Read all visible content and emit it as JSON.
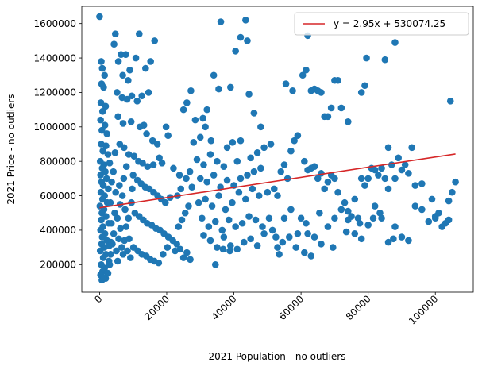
{
  "chart_data": {
    "type": "scatter",
    "xlabel": "2021 Population - no outliers",
    "ylabel": "2021 Price - no outliers",
    "xlim": [
      -5300,
      111300
    ],
    "ylim": [
      40000,
      1700000
    ],
    "xticks": [
      0,
      20000,
      40000,
      60000,
      80000,
      100000
    ],
    "yticks": [
      200000,
      400000,
      600000,
      800000,
      1000000,
      1200000,
      1400000,
      1600000
    ],
    "grid": false,
    "legend_position": "top-right",
    "colors": {
      "points": "#1f77b4",
      "fit_line": "#d62728"
    },
    "fit_line": {
      "label": "y = 2.95x + 530074.25",
      "slope": 2.95,
      "intercept": 530074.25,
      "x_range": [
        0,
        106000
      ]
    },
    "points": [
      [
        0,
        1640000
      ],
      [
        500,
        1380000
      ],
      [
        800,
        1340000
      ],
      [
        1500,
        1300000
      ],
      [
        600,
        1250000
      ],
      [
        1200,
        1230000
      ],
      [
        400,
        1140000
      ],
      [
        1800,
        1120000
      ],
      [
        900,
        1090000
      ],
      [
        300,
        1040000
      ],
      [
        1600,
        1010000
      ],
      [
        700,
        980000
      ],
      [
        2200,
        960000
      ],
      [
        500,
        900000
      ],
      [
        1900,
        890000
      ],
      [
        1000,
        860000
      ],
      [
        2500,
        840000
      ],
      [
        200,
        800000
      ],
      [
        1300,
        780000
      ],
      [
        800,
        760000
      ],
      [
        1700,
        740000
      ],
      [
        300,
        720000
      ],
      [
        2100,
        700000
      ],
      [
        600,
        680000
      ],
      [
        1100,
        660000
      ],
      [
        2600,
        640000
      ],
      [
        400,
        620000
      ],
      [
        1500,
        600000
      ],
      [
        900,
        580000
      ],
      [
        2300,
        560000
      ],
      [
        100,
        540000
      ],
      [
        1300,
        520000
      ],
      [
        700,
        500000
      ],
      [
        1900,
        480000
      ],
      [
        500,
        460000
      ],
      [
        2700,
        440000
      ],
      [
        1000,
        420000
      ],
      [
        300,
        400000
      ],
      [
        1600,
        380000
      ],
      [
        800,
        360000
      ],
      [
        2200,
        340000
      ],
      [
        600,
        320000
      ],
      [
        1400,
        300000
      ],
      [
        200,
        280000
      ],
      [
        1900,
        260000
      ],
      [
        1100,
        240000
      ],
      [
        2800,
        220000
      ],
      [
        500,
        200000
      ],
      [
        1500,
        180000
      ],
      [
        900,
        160000
      ],
      [
        300,
        140000
      ],
      [
        1800,
        120000
      ],
      [
        700,
        110000
      ],
      [
        1200,
        125000
      ],
      [
        2500,
        150000
      ],
      [
        3000,
        200000
      ],
      [
        3300,
        260000
      ],
      [
        3800,
        320000
      ],
      [
        4200,
        380000
      ],
      [
        3500,
        440000
      ],
      [
        4500,
        500000
      ],
      [
        3200,
        560000
      ],
      [
        4800,
        620000
      ],
      [
        3600,
        680000
      ],
      [
        4100,
        740000
      ],
      [
        3000,
        790000
      ],
      [
        4600,
        850000
      ],
      [
        3400,
        330000
      ],
      [
        5000,
        280000
      ],
      [
        5400,
        220000
      ],
      [
        2900,
        310000
      ],
      [
        5700,
        350000
      ],
      [
        6200,
        410000
      ],
      [
        6600,
        300000
      ],
      [
        7000,
        260000
      ],
      [
        7400,
        340000
      ],
      [
        7900,
        420000
      ],
      [
        8300,
        280000
      ],
      [
        8800,
        350000
      ],
      [
        9200,
        240000
      ],
      [
        5300,
        470000
      ],
      [
        6100,
        550000
      ],
      [
        6800,
        600000
      ],
      [
        7600,
        520000
      ],
      [
        8600,
        470000
      ],
      [
        9500,
        560000
      ],
      [
        5900,
        660000
      ],
      [
        7200,
        700000
      ],
      [
        8000,
        770000
      ],
      [
        9700,
        640000
      ],
      [
        4300,
        1480000
      ],
      [
        5600,
        1380000
      ],
      [
        6400,
        1420000
      ],
      [
        7800,
        1420000
      ],
      [
        9000,
        1330000
      ],
      [
        10800,
        1400000
      ],
      [
        11800,
        1540000
      ],
      [
        4700,
        1540000
      ],
      [
        6900,
        1300000
      ],
      [
        8500,
        1270000
      ],
      [
        5200,
        1200000
      ],
      [
        6700,
        1170000
      ],
      [
        8200,
        1160000
      ],
      [
        9600,
        1180000
      ],
      [
        11200,
        1150000
      ],
      [
        12600,
        1180000
      ],
      [
        13700,
        1340000
      ],
      [
        14600,
        1200000
      ],
      [
        15200,
        1380000
      ],
      [
        16400,
        1500000
      ],
      [
        5500,
        1060000
      ],
      [
        7000,
        1020000
      ],
      [
        9400,
        1030000
      ],
      [
        12000,
        1000000
      ],
      [
        13200,
        1010000
      ],
      [
        14000,
        960000
      ],
      [
        15800,
        920000
      ],
      [
        17200,
        900000
      ],
      [
        19800,
        1000000
      ],
      [
        20400,
        950000
      ],
      [
        6000,
        900000
      ],
      [
        7300,
        880000
      ],
      [
        8700,
        840000
      ],
      [
        10300,
        830000
      ],
      [
        11600,
        800000
      ],
      [
        12800,
        790000
      ],
      [
        14300,
        770000
      ],
      [
        16000,
        780000
      ],
      [
        17800,
        820000
      ],
      [
        18600,
        790000
      ],
      [
        10000,
        720000
      ],
      [
        11300,
        690000
      ],
      [
        12400,
        670000
      ],
      [
        13600,
        650000
      ],
      [
        14800,
        640000
      ],
      [
        16100,
        620000
      ],
      [
        17300,
        600000
      ],
      [
        18400,
        580000
      ],
      [
        19600,
        560000
      ],
      [
        21000,
        590000
      ],
      [
        10500,
        500000
      ],
      [
        11800,
        480000
      ],
      [
        13000,
        460000
      ],
      [
        14200,
        440000
      ],
      [
        15500,
        430000
      ],
      [
        16800,
        410000
      ],
      [
        18000,
        400000
      ],
      [
        19200,
        380000
      ],
      [
        20500,
        360000
      ],
      [
        21800,
        340000
      ],
      [
        10100,
        300000
      ],
      [
        11400,
        280000
      ],
      [
        12600,
        260000
      ],
      [
        13900,
        250000
      ],
      [
        15100,
        230000
      ],
      [
        16300,
        220000
      ],
      [
        17600,
        210000
      ],
      [
        18900,
        260000
      ],
      [
        20200,
        300000
      ],
      [
        22500,
        280000
      ],
      [
        23000,
        320000
      ],
      [
        24000,
        290000
      ],
      [
        25000,
        240000
      ],
      [
        26000,
        270000
      ],
      [
        27000,
        230000
      ],
      [
        23500,
        420000
      ],
      [
        24500,
        460000
      ],
      [
        25500,
        500000
      ],
      [
        26500,
        540000
      ],
      [
        23200,
        600000
      ],
      [
        24200,
        640000
      ],
      [
        25800,
        700000
      ],
      [
        27500,
        650000
      ],
      [
        22000,
        760000
      ],
      [
        23800,
        720000
      ],
      [
        26900,
        740000
      ],
      [
        28000,
        910000
      ],
      [
        30000,
        940000
      ],
      [
        31500,
        1000000
      ],
      [
        32000,
        1100000
      ],
      [
        25000,
        1100000
      ],
      [
        26000,
        1140000
      ],
      [
        27200,
        1210000
      ],
      [
        28500,
        1040000
      ],
      [
        30800,
        1050000
      ],
      [
        33200,
        920000
      ],
      [
        34000,
        1300000
      ],
      [
        36100,
        1610000
      ],
      [
        40500,
        1440000
      ],
      [
        42000,
        1520000
      ],
      [
        43500,
        1620000
      ],
      [
        44000,
        1500000
      ],
      [
        39000,
        1230000
      ],
      [
        44500,
        1190000
      ],
      [
        46000,
        1080000
      ],
      [
        48000,
        1000000
      ],
      [
        42000,
        920000
      ],
      [
        39600,
        910000
      ],
      [
        38000,
        880000
      ],
      [
        35500,
        1220000
      ],
      [
        29000,
        810000
      ],
      [
        31000,
        780000
      ],
      [
        33000,
        840000
      ],
      [
        35000,
        800000
      ],
      [
        37000,
        770000
      ],
      [
        41000,
        800000
      ],
      [
        45000,
        820000
      ],
      [
        47000,
        850000
      ],
      [
        49000,
        880000
      ],
      [
        51000,
        900000
      ],
      [
        30000,
        700000
      ],
      [
        32000,
        680000
      ],
      [
        34000,
        720000
      ],
      [
        36000,
        650000
      ],
      [
        38000,
        690000
      ],
      [
        40000,
        660000
      ],
      [
        42000,
        700000
      ],
      [
        44000,
        720000
      ],
      [
        46000,
        740000
      ],
      [
        48000,
        760000
      ],
      [
        29500,
        560000
      ],
      [
        31500,
        580000
      ],
      [
        33500,
        540000
      ],
      [
        35500,
        600000
      ],
      [
        37500,
        520000
      ],
      [
        39500,
        560000
      ],
      [
        41500,
        620000
      ],
      [
        43500,
        580000
      ],
      [
        45500,
        640000
      ],
      [
        47500,
        600000
      ],
      [
        30500,
        470000
      ],
      [
        32500,
        420000
      ],
      [
        34500,
        450000
      ],
      [
        36500,
        400000
      ],
      [
        38500,
        460000
      ],
      [
        40500,
        420000
      ],
      [
        42500,
        440000
      ],
      [
        44500,
        480000
      ],
      [
        46500,
        460000
      ],
      [
        48500,
        420000
      ],
      [
        31000,
        370000
      ],
      [
        33000,
        340000
      ],
      [
        35000,
        300000
      ],
      [
        37000,
        360000
      ],
      [
        39000,
        310000
      ],
      [
        41000,
        290000
      ],
      [
        43000,
        330000
      ],
      [
        45000,
        350000
      ],
      [
        47000,
        310000
      ],
      [
        49000,
        380000
      ],
      [
        34500,
        200000
      ],
      [
        36800,
        290000
      ],
      [
        38800,
        280000
      ],
      [
        50500,
        470000
      ],
      [
        51500,
        400000
      ],
      [
        52500,
        360000
      ],
      [
        53500,
        260000
      ],
      [
        54500,
        330000
      ],
      [
        50000,
        620000
      ],
      [
        52000,
        640000
      ],
      [
        53000,
        600000
      ],
      [
        54000,
        740000
      ],
      [
        55000,
        780000
      ],
      [
        56000,
        700000
      ],
      [
        57000,
        860000
      ],
      [
        58000,
        920000
      ],
      [
        59000,
        950000
      ],
      [
        55500,
        1250000
      ],
      [
        57500,
        1210000
      ],
      [
        60500,
        1300000
      ],
      [
        61500,
        1330000
      ],
      [
        62000,
        1530000
      ],
      [
        63000,
        1210000
      ],
      [
        64000,
        1220000
      ],
      [
        65000,
        1210000
      ],
      [
        66000,
        1200000
      ],
      [
        67000,
        1060000
      ],
      [
        68000,
        1060000
      ],
      [
        69000,
        1110000
      ],
      [
        70000,
        1270000
      ],
      [
        71000,
        1270000
      ],
      [
        72000,
        1110000
      ],
      [
        74000,
        1030000
      ],
      [
        61000,
        800000
      ],
      [
        62000,
        750000
      ],
      [
        63000,
        760000
      ],
      [
        64000,
        770000
      ],
      [
        65000,
        700000
      ],
      [
        66000,
        730000
      ],
      [
        67000,
        640000
      ],
      [
        68000,
        680000
      ],
      [
        69000,
        720000
      ],
      [
        70000,
        700000
      ],
      [
        71000,
        620000
      ],
      [
        73000,
        560000
      ],
      [
        74000,
        510000
      ],
      [
        75000,
        480000
      ],
      [
        76000,
        580000
      ],
      [
        77000,
        470000
      ],
      [
        78000,
        700000
      ],
      [
        79000,
        660000
      ],
      [
        80000,
        700000
      ],
      [
        81000,
        760000
      ],
      [
        82000,
        750000
      ],
      [
        83000,
        720000
      ],
      [
        84000,
        760000
      ],
      [
        85000,
        700000
      ],
      [
        86000,
        640000
      ],
      [
        87000,
        780000
      ],
      [
        88000,
        700000
      ],
      [
        89000,
        820000
      ],
      [
        90000,
        750000
      ],
      [
        91000,
        780000
      ],
      [
        92000,
        730000
      ],
      [
        93000,
        880000
      ],
      [
        94000,
        660000
      ],
      [
        96000,
        670000
      ],
      [
        98000,
        450000
      ],
      [
        99000,
        580000
      ],
      [
        100000,
        470000
      ],
      [
        101000,
        500000
      ],
      [
        102000,
        420000
      ],
      [
        103000,
        440000
      ],
      [
        104000,
        570000
      ],
      [
        105000,
        620000
      ],
      [
        106000,
        680000
      ],
      [
        104500,
        1150000
      ],
      [
        79000,
        1240000
      ],
      [
        79500,
        1400000
      ],
      [
        85000,
        1390000
      ],
      [
        88000,
        1490000
      ],
      [
        78000,
        1200000
      ],
      [
        86000,
        880000
      ],
      [
        60000,
        470000
      ],
      [
        62000,
        380000
      ],
      [
        64000,
        360000
      ],
      [
        66000,
        320000
      ],
      [
        68000,
        420000
      ],
      [
        70000,
        470000
      ],
      [
        72000,
        520000
      ],
      [
        74000,
        460000
      ],
      [
        76000,
        380000
      ],
      [
        78000,
        350000
      ],
      [
        80000,
        430000
      ],
      [
        82000,
        540000
      ],
      [
        84000,
        470000
      ],
      [
        86000,
        330000
      ],
      [
        88000,
        420000
      ],
      [
        90000,
        360000
      ],
      [
        92000,
        340000
      ],
      [
        94000,
        540000
      ],
      [
        96000,
        520000
      ],
      [
        100000,
        480000
      ],
      [
        104000,
        460000
      ],
      [
        55000,
        470000
      ],
      [
        57000,
        520000
      ],
      [
        59000,
        380000
      ],
      [
        61000,
        270000
      ],
      [
        63000,
        250000
      ],
      [
        53000,
        300000
      ],
      [
        56500,
        360000
      ],
      [
        58500,
        300000
      ],
      [
        61500,
        440000
      ],
      [
        65500,
        500000
      ],
      [
        69500,
        300000
      ],
      [
        73500,
        390000
      ],
      [
        77500,
        440000
      ],
      [
        81500,
        470000
      ],
      [
        83500,
        500000
      ],
      [
        87500,
        350000
      ]
    ]
  }
}
